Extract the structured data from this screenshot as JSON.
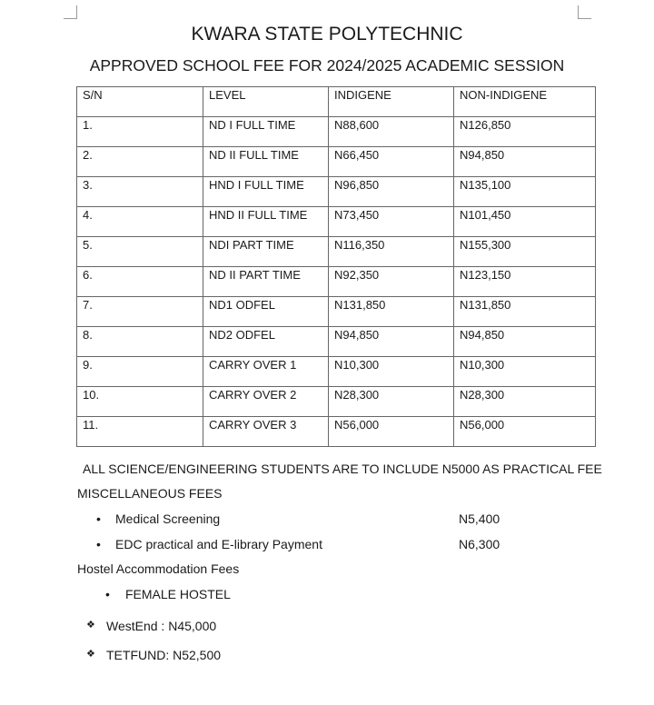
{
  "title": "KWARA STATE POLYTECHNIC",
  "subtitle": "APPROVED SCHOOL FEE FOR 2024/2025 ACADEMIC SESSION",
  "table": {
    "headers": [
      "S/N",
      "LEVEL",
      "INDIGENE",
      "NON-INDIGENE"
    ],
    "rows": [
      [
        "1.",
        "ND I FULL TIME",
        "N88,600",
        "N126,850"
      ],
      [
        "2.",
        "ND II FULL TIME",
        "N66,450",
        "N94,850"
      ],
      [
        "3.",
        "HND I FULL TIME",
        "N96,850",
        "N135,100"
      ],
      [
        "4.",
        "HND II FULL TIME",
        "N73,450",
        "N101,450"
      ],
      [
        "5.",
        "NDI PART TIME",
        "N116,350",
        "N155,300"
      ],
      [
        "6.",
        "ND II PART TIME",
        "N92,350",
        "N123,150"
      ],
      [
        "7.",
        "ND1 ODFEL",
        "N131,850",
        "N131,850"
      ],
      [
        "8.",
        "ND2 ODFEL",
        "N94,850",
        "N94,850"
      ],
      [
        "9.",
        "CARRY OVER 1",
        "N10,300",
        "N10,300"
      ],
      [
        "10.",
        "CARRY OVER 2",
        "N28,300",
        "N28,300"
      ],
      [
        "11.",
        "CARRY OVER 3",
        "N56,000",
        "N56,000"
      ]
    ]
  },
  "note": "ALL SCIENCE/ENGINEERING STUDENTS ARE TO INCLUDE N5000 AS PRACTICAL FEE",
  "misc": {
    "heading": "MISCELLANEOUS FEES",
    "items": [
      {
        "label": "Medical Screening",
        "amount": "N5,400"
      },
      {
        "label": "EDC practical and E-library Payment",
        "amount": "N6,300"
      }
    ]
  },
  "hostel": {
    "heading": "Hostel Accommodation Fees",
    "category": "FEMALE HOSTEL",
    "bullet_symbol": "❖",
    "items": [
      "WestEnd : N45,000",
      "TETFUND: N52,500"
    ]
  }
}
